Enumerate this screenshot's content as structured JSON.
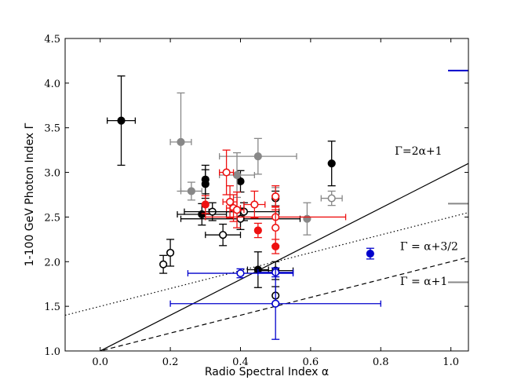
{
  "chart_data": {
    "type": "scatter",
    "title": "",
    "xlabel": "Radio Spectral Index α",
    "ylabel": "1-100 GeV Photon Index Γ",
    "xlim": [
      -0.1,
      1.05
    ],
    "ylim": [
      1.0,
      4.5
    ],
    "grid": false,
    "xticks": [
      0.0,
      0.2,
      0.4,
      0.6,
      0.8,
      1.0
    ],
    "xtick_labels": [
      "0.0",
      "0.2",
      "0.4",
      "0.6",
      "0.8",
      "1.0"
    ],
    "yticks": [
      1.0,
      1.5,
      2.0,
      2.5,
      3.0,
      3.5,
      4.0,
      4.5
    ],
    "ytick_labels": [
      "1.0",
      "1.5",
      "2.0",
      "2.5",
      "3.0",
      "3.5",
      "4.0",
      "4.5"
    ],
    "lines": [
      {
        "name": "Γ=2α+1",
        "slope": 2,
        "intercept": 1,
        "style": "solid",
        "label": "Γ=2α+1",
        "label_pos": [
          0.84,
          3.2
        ]
      },
      {
        "name": "Γ = α+3/2",
        "slope": 1,
        "intercept": 1.5,
        "style": "dotted",
        "label": "Γ = α+3/2",
        "label_pos": [
          0.855,
          2.13
        ]
      },
      {
        "name": "Γ = α+1",
        "slope": 1,
        "intercept": 1,
        "style": "dashed",
        "label": "Γ = α+1",
        "label_pos": [
          0.855,
          1.74
        ]
      }
    ],
    "colors": {
      "black": "#000000",
      "gray": "#888888",
      "red": "#ee1111",
      "blue": "#0000cc"
    },
    "series": [
      {
        "name": "black filled",
        "color": "black",
        "filled": true,
        "points": [
          {
            "x": 0.06,
            "y": 3.58,
            "xerr": 0.04,
            "yerr": 0.5
          },
          {
            "x": 0.3,
            "y": 2.92,
            "xerr": 0.0,
            "yerr": 0.16
          },
          {
            "x": 0.3,
            "y": 2.87,
            "xerr": 0.0,
            "yerr": 0.16
          },
          {
            "x": 0.29,
            "y": 2.53,
            "xerr": 0.07,
            "yerr": 0.12
          },
          {
            "x": 0.4,
            "y": 2.9,
            "xerr": 0.0,
            "yerr": 0.12
          },
          {
            "x": 0.45,
            "y": 1.91,
            "xerr": 0.03,
            "yerr": 0.2
          },
          {
            "x": 0.66,
            "y": 3.1,
            "xerr": 0.0,
            "yerr": 0.25
          }
        ]
      },
      {
        "name": "black open",
        "color": "black",
        "filled": false,
        "points": [
          {
            "x": 0.18,
            "y": 1.97,
            "xerr": 0.0,
            "yerr": 0.1
          },
          {
            "x": 0.2,
            "y": 2.1,
            "xerr": 0.0,
            "yerr": 0.15
          },
          {
            "x": 0.32,
            "y": 2.56,
            "xerr": 0.08,
            "yerr": 0.1
          },
          {
            "x": 0.35,
            "y": 2.3,
            "xerr": 0.05,
            "yerr": 0.12
          },
          {
            "x": 0.41,
            "y": 2.56,
            "xerr": 0.1,
            "yerr": 0.1
          },
          {
            "x": 0.4,
            "y": 2.48,
            "xerr": 0.17,
            "yerr": 0.12
          },
          {
            "x": 0.5,
            "y": 1.9,
            "xerr": 0.05,
            "yerr": 0.1
          },
          {
            "x": 0.5,
            "y": 1.62,
            "xerr": 0.0,
            "yerr": 0.1
          },
          {
            "x": 0.5,
            "y": 2.71,
            "xerr": 0.0,
            "yerr": 0.08
          }
        ]
      },
      {
        "name": "gray filled",
        "color": "gray",
        "filled": true,
        "points": [
          {
            "x": 0.23,
            "y": 3.34,
            "xerr": 0.03,
            "yerr": 0.55
          },
          {
            "x": 0.26,
            "y": 2.79,
            "xerr": 0.03,
            "yerr": 0.1
          },
          {
            "x": 0.39,
            "y": 2.97,
            "xerr": 0.05,
            "yerr": 0.25
          },
          {
            "x": 0.45,
            "y": 3.18,
            "xerr": 0.11,
            "yerr": 0.2
          },
          {
            "x": 0.59,
            "y": 2.48,
            "xerr": 0.0,
            "yerr": 0.18
          }
        ]
      },
      {
        "name": "gray open",
        "color": "gray",
        "filled": false,
        "points": [
          {
            "x": 0.5,
            "y": 2.73,
            "xerr": 0.0,
            "yerr": 0.1
          },
          {
            "x": 0.66,
            "y": 2.71,
            "xerr": 0.03,
            "yerr": 0.08
          }
        ]
      },
      {
        "name": "red filled",
        "color": "red",
        "filled": true,
        "points": [
          {
            "x": 0.3,
            "y": 2.64,
            "xerr": 0.0,
            "yerr": 0.1
          },
          {
            "x": 0.45,
            "y": 2.35,
            "xerr": 0.0,
            "yerr": 0.08
          },
          {
            "x": 0.5,
            "y": 2.17,
            "xerr": 0.0,
            "yerr": 0.08
          }
        ]
      },
      {
        "name": "red open",
        "color": "red",
        "filled": false,
        "points": [
          {
            "x": 0.36,
            "y": 3.0,
            "xerr": 0.02,
            "yerr": 0.25
          },
          {
            "x": 0.37,
            "y": 2.67,
            "xerr": 0.02,
            "yerr": 0.18
          },
          {
            "x": 0.38,
            "y": 2.6,
            "xerr": 0.02,
            "yerr": 0.15
          },
          {
            "x": 0.39,
            "y": 2.58,
            "xerr": 0.02,
            "yerr": 0.2
          },
          {
            "x": 0.44,
            "y": 2.64,
            "xerr": 0.03,
            "yerr": 0.15
          },
          {
            "x": 0.5,
            "y": 2.5,
            "xerr": 0.2,
            "yerr": 0.12
          },
          {
            "x": 0.5,
            "y": 2.38,
            "xerr": 0.0,
            "yerr": 0.2
          },
          {
            "x": 0.5,
            "y": 2.73,
            "xerr": 0.0,
            "yerr": 0.12
          }
        ]
      },
      {
        "name": "blue filled",
        "color": "blue",
        "filled": true,
        "points": [
          {
            "x": 0.77,
            "y": 2.09,
            "xerr": 0.0,
            "yerr": 0.06
          }
        ]
      },
      {
        "name": "blue open",
        "color": "blue",
        "filled": false,
        "points": [
          {
            "x": 0.4,
            "y": 1.87,
            "xerr": 0.15,
            "yerr": 0.05
          },
          {
            "x": 0.5,
            "y": 1.88,
            "xerr": 0.05,
            "yerr": 0.05
          },
          {
            "x": 0.5,
            "y": 1.53,
            "xerr": 0.3,
            "yerr": 0.4
          }
        ]
      }
    ],
    "edge_markers": [
      {
        "color": "blue",
        "y": 4.14
      },
      {
        "color": "gray",
        "y": 2.65
      },
      {
        "color": "gray",
        "y": 1.77
      }
    ]
  }
}
